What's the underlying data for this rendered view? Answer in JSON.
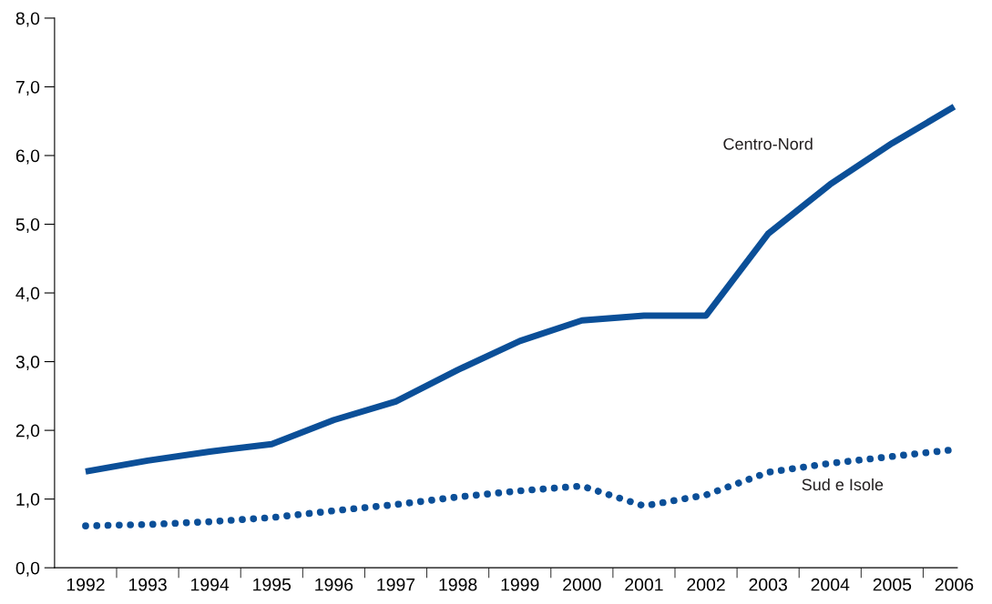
{
  "chart_data": {
    "type": "line",
    "categories": [
      "1992",
      "1993",
      "1994",
      "1995",
      "1996",
      "1997",
      "1998",
      "1999",
      "2000",
      "2001",
      "2002",
      "2003",
      "2004",
      "2005",
      "2006"
    ],
    "series": [
      {
        "name": "Centro-Nord",
        "color": "#0b4f98",
        "line_style": "solid",
        "values": [
          1.4,
          1.56,
          1.69,
          1.8,
          2.15,
          2.42,
          2.88,
          3.3,
          3.6,
          3.67,
          3.67,
          4.86,
          5.58,
          6.18,
          6.71
        ]
      },
      {
        "name": "Sud e Isole",
        "color": "#0b4f98",
        "line_style": "dotted",
        "values": [
          0.61,
          0.63,
          0.67,
          0.73,
          0.83,
          0.92,
          1.03,
          1.12,
          1.19,
          0.9,
          1.06,
          1.39,
          1.52,
          1.62,
          1.72
        ]
      }
    ],
    "ylim": [
      0,
      8
    ],
    "yticks": [
      {
        "value": 0,
        "label": "0,0"
      },
      {
        "value": 1,
        "label": "1,0"
      },
      {
        "value": 2,
        "label": "2,0"
      },
      {
        "value": 3,
        "label": "3,0"
      },
      {
        "value": 4,
        "label": "4,0"
      },
      {
        "value": 5,
        "label": "5,0"
      },
      {
        "value": 6,
        "label": "6,0"
      },
      {
        "value": 7,
        "label": "7,0"
      },
      {
        "value": 8,
        "label": "8,0"
      }
    ],
    "grid": false,
    "legend": false,
    "marker": "none"
  }
}
